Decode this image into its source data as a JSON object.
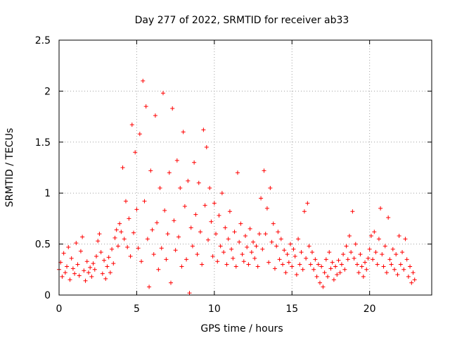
{
  "chart_data": {
    "type": "scatter",
    "title": "Day 277 of 2022, SRMTID for receiver ab33",
    "xlabel": "GPS time / hours",
    "ylabel": "SRMTID / TECUs",
    "xlim": [
      0,
      24
    ],
    "ylim": [
      0,
      2.5
    ],
    "xticks": [
      0,
      5,
      10,
      15,
      20
    ],
    "xtick_labels": [
      "0",
      "5",
      "10",
      "15",
      "20"
    ],
    "yticks": [
      0,
      0.5,
      1,
      1.5,
      2,
      2.5
    ],
    "ytick_labels": [
      "0",
      "0.5",
      "1",
      "1.5",
      "2",
      "2.5"
    ],
    "grid": true,
    "marker": "plus",
    "color": "#ff0000",
    "series": [
      {
        "name": "SRMTID",
        "points": [
          [
            0.0,
            0.25
          ],
          [
            0.1,
            0.32
          ],
          [
            0.2,
            0.18
          ],
          [
            0.3,
            0.41
          ],
          [
            0.4,
            0.22
          ],
          [
            0.5,
            0.28
          ],
          [
            0.6,
            0.47
          ],
          [
            0.7,
            0.15
          ],
          [
            0.8,
            0.36
          ],
          [
            0.9,
            0.26
          ],
          [
            1.0,
            0.21
          ],
          [
            1.1,
            0.51
          ],
          [
            1.2,
            0.3
          ],
          [
            1.3,
            0.19
          ],
          [
            1.4,
            0.43
          ],
          [
            1.5,
            0.57
          ],
          [
            1.6,
            0.24
          ],
          [
            1.7,
            0.14
          ],
          [
            1.8,
            0.33
          ],
          [
            1.9,
            0.22
          ],
          [
            2.0,
            0.27
          ],
          [
            2.1,
            0.18
          ],
          [
            2.2,
            0.31
          ],
          [
            2.3,
            0.25
          ],
          [
            2.4,
            0.38
          ],
          [
            2.5,
            0.53
          ],
          [
            2.6,
            0.6
          ],
          [
            2.7,
            0.42
          ],
          [
            2.8,
            0.21
          ],
          [
            2.9,
            0.34
          ],
          [
            3.0,
            0.16
          ],
          [
            3.1,
            0.28
          ],
          [
            3.2,
            0.37
          ],
          [
            3.3,
            0.22
          ],
          [
            3.4,
            0.45
          ],
          [
            3.5,
            0.31
          ],
          [
            3.6,
            0.56
          ],
          [
            3.7,
            0.64
          ],
          [
            3.8,
            0.48
          ],
          [
            3.9,
            0.7
          ],
          [
            4.0,
            0.62
          ],
          [
            4.1,
            1.25
          ],
          [
            4.2,
            0.55
          ],
          [
            4.3,
            0.92
          ],
          [
            4.4,
            0.47
          ],
          [
            4.5,
            0.75
          ],
          [
            4.6,
            0.38
          ],
          [
            4.7,
            1.67
          ],
          [
            4.8,
            0.61
          ],
          [
            4.9,
            1.4
          ],
          [
            5.0,
            0.84
          ],
          [
            5.1,
            0.46
          ],
          [
            5.2,
            1.58
          ],
          [
            5.3,
            0.33
          ],
          [
            5.4,
            2.1
          ],
          [
            5.5,
            0.92
          ],
          [
            5.6,
            1.85
          ],
          [
            5.7,
            0.55
          ],
          [
            5.8,
            0.08
          ],
          [
            5.9,
            1.22
          ],
          [
            6.0,
            0.64
          ],
          [
            6.1,
            0.4
          ],
          [
            6.2,
            1.76
          ],
          [
            6.3,
            0.71
          ],
          [
            6.4,
            0.25
          ],
          [
            6.5,
            1.05
          ],
          [
            6.6,
            0.46
          ],
          [
            6.7,
            1.98
          ],
          [
            6.8,
            0.83
          ],
          [
            6.9,
            0.35
          ],
          [
            7.0,
            0.6
          ],
          [
            7.1,
            1.2
          ],
          [
            7.2,
            0.12
          ],
          [
            7.3,
            1.83
          ],
          [
            7.4,
            0.73
          ],
          [
            7.5,
            0.44
          ],
          [
            7.6,
            1.32
          ],
          [
            7.7,
            0.57
          ],
          [
            7.8,
            1.05
          ],
          [
            7.9,
            0.28
          ],
          [
            8.0,
            1.6
          ],
          [
            8.1,
            0.87
          ],
          [
            8.2,
            0.35
          ],
          [
            8.3,
            1.12
          ],
          [
            8.4,
            0.02
          ],
          [
            8.5,
            0.66
          ],
          [
            8.6,
            0.48
          ],
          [
            8.7,
            1.3
          ],
          [
            8.8,
            0.79
          ],
          [
            8.9,
            0.4
          ],
          [
            9.0,
            1.1
          ],
          [
            9.1,
            0.62
          ],
          [
            9.2,
            0.3
          ],
          [
            9.3,
            1.62
          ],
          [
            9.4,
            0.88
          ],
          [
            9.5,
            1.45
          ],
          [
            9.6,
            0.54
          ],
          [
            9.7,
            1.05
          ],
          [
            9.8,
            0.72
          ],
          [
            9.9,
            0.38
          ],
          [
            10.0,
            0.9
          ],
          [
            10.1,
            0.6
          ],
          [
            10.2,
            0.33
          ],
          [
            10.3,
            0.78
          ],
          [
            10.4,
            0.48
          ],
          [
            10.5,
            1.0
          ],
          [
            10.6,
            0.42
          ],
          [
            10.7,
            0.66
          ],
          [
            10.8,
            0.3
          ],
          [
            10.9,
            0.55
          ],
          [
            11.0,
            0.82
          ],
          [
            11.1,
            0.45
          ],
          [
            11.2,
            0.36
          ],
          [
            11.3,
            0.62
          ],
          [
            11.4,
            0.28
          ],
          [
            11.5,
            1.2
          ],
          [
            11.6,
            0.52
          ],
          [
            11.7,
            0.7
          ],
          [
            11.8,
            0.4
          ],
          [
            11.9,
            0.33
          ],
          [
            12.0,
            0.58
          ],
          [
            12.1,
            0.47
          ],
          [
            12.2,
            0.3
          ],
          [
            12.3,
            0.65
          ],
          [
            12.4,
            0.42
          ],
          [
            12.5,
            0.52
          ],
          [
            12.6,
            0.36
          ],
          [
            12.7,
            0.48
          ],
          [
            12.8,
            0.28
          ],
          [
            12.9,
            0.6
          ],
          [
            13.0,
            0.95
          ],
          [
            13.1,
            0.45
          ],
          [
            13.2,
            1.22
          ],
          [
            13.3,
            0.6
          ],
          [
            13.4,
            0.85
          ],
          [
            13.5,
            0.32
          ],
          [
            13.6,
            1.05
          ],
          [
            13.7,
            0.52
          ],
          [
            13.8,
            0.7
          ],
          [
            13.9,
            0.26
          ],
          [
            14.0,
            0.48
          ],
          [
            14.1,
            0.62
          ],
          [
            14.2,
            0.35
          ],
          [
            14.3,
            0.55
          ],
          [
            14.4,
            0.3
          ],
          [
            14.5,
            0.44
          ],
          [
            14.6,
            0.22
          ],
          [
            14.7,
            0.4
          ],
          [
            14.8,
            0.32
          ],
          [
            14.9,
            0.5
          ],
          [
            15.0,
            0.28
          ],
          [
            15.1,
            0.45
          ],
          [
            15.2,
            0.38
          ],
          [
            15.3,
            0.2
          ],
          [
            15.4,
            0.55
          ],
          [
            15.5,
            0.3
          ],
          [
            15.6,
            0.42
          ],
          [
            15.7,
            0.25
          ],
          [
            15.8,
            0.82
          ],
          [
            15.9,
            0.36
          ],
          [
            16.0,
            0.9
          ],
          [
            16.1,
            0.48
          ],
          [
            16.2,
            0.3
          ],
          [
            16.3,
            0.42
          ],
          [
            16.4,
            0.25
          ],
          [
            16.5,
            0.35
          ],
          [
            16.6,
            0.18
          ],
          [
            16.7,
            0.3
          ],
          [
            16.8,
            0.12
          ],
          [
            16.9,
            0.28
          ],
          [
            17.0,
            0.08
          ],
          [
            17.1,
            0.22
          ],
          [
            17.2,
            0.35
          ],
          [
            17.3,
            0.18
          ],
          [
            17.4,
            0.42
          ],
          [
            17.5,
            0.26
          ],
          [
            17.6,
            0.32
          ],
          [
            17.7,
            0.15
          ],
          [
            17.8,
            0.28
          ],
          [
            17.9,
            0.2
          ],
          [
            18.0,
            0.34
          ],
          [
            18.1,
            0.22
          ],
          [
            18.2,
            0.3
          ],
          [
            18.3,
            0.4
          ],
          [
            18.4,
            0.25
          ],
          [
            18.5,
            0.48
          ],
          [
            18.6,
            0.35
          ],
          [
            18.7,
            0.58
          ],
          [
            18.8,
            0.42
          ],
          [
            18.9,
            0.82
          ],
          [
            19.0,
            0.36
          ],
          [
            19.1,
            0.5
          ],
          [
            19.2,
            0.3
          ],
          [
            19.3,
            0.22
          ],
          [
            19.4,
            0.4
          ],
          [
            19.5,
            0.28
          ],
          [
            19.6,
            0.18
          ],
          [
            19.7,
            0.32
          ],
          [
            19.8,
            0.25
          ],
          [
            19.9,
            0.36
          ],
          [
            20.0,
            0.45
          ],
          [
            20.1,
            0.58
          ],
          [
            20.2,
            0.35
          ],
          [
            20.3,
            0.62
          ],
          [
            20.4,
            0.42
          ],
          [
            20.5,
            0.3
          ],
          [
            20.6,
            0.55
          ],
          [
            20.7,
            0.85
          ],
          [
            20.8,
            0.4
          ],
          [
            20.9,
            0.28
          ],
          [
            21.0,
            0.48
          ],
          [
            21.1,
            0.22
          ],
          [
            21.2,
            0.76
          ],
          [
            21.3,
            0.35
          ],
          [
            21.4,
            0.3
          ],
          [
            21.5,
            0.45
          ],
          [
            21.6,
            0.25
          ],
          [
            21.7,
            0.4
          ],
          [
            21.8,
            0.2
          ],
          [
            21.9,
            0.58
          ],
          [
            22.0,
            0.3
          ],
          [
            22.1,
            0.42
          ],
          [
            22.2,
            0.25
          ],
          [
            22.3,
            0.55
          ],
          [
            22.4,
            0.35
          ],
          [
            22.5,
            0.18
          ],
          [
            22.6,
            0.28
          ],
          [
            22.7,
            0.12
          ],
          [
            22.8,
            0.22
          ],
          [
            22.9,
            0.15
          ]
        ]
      }
    ]
  }
}
